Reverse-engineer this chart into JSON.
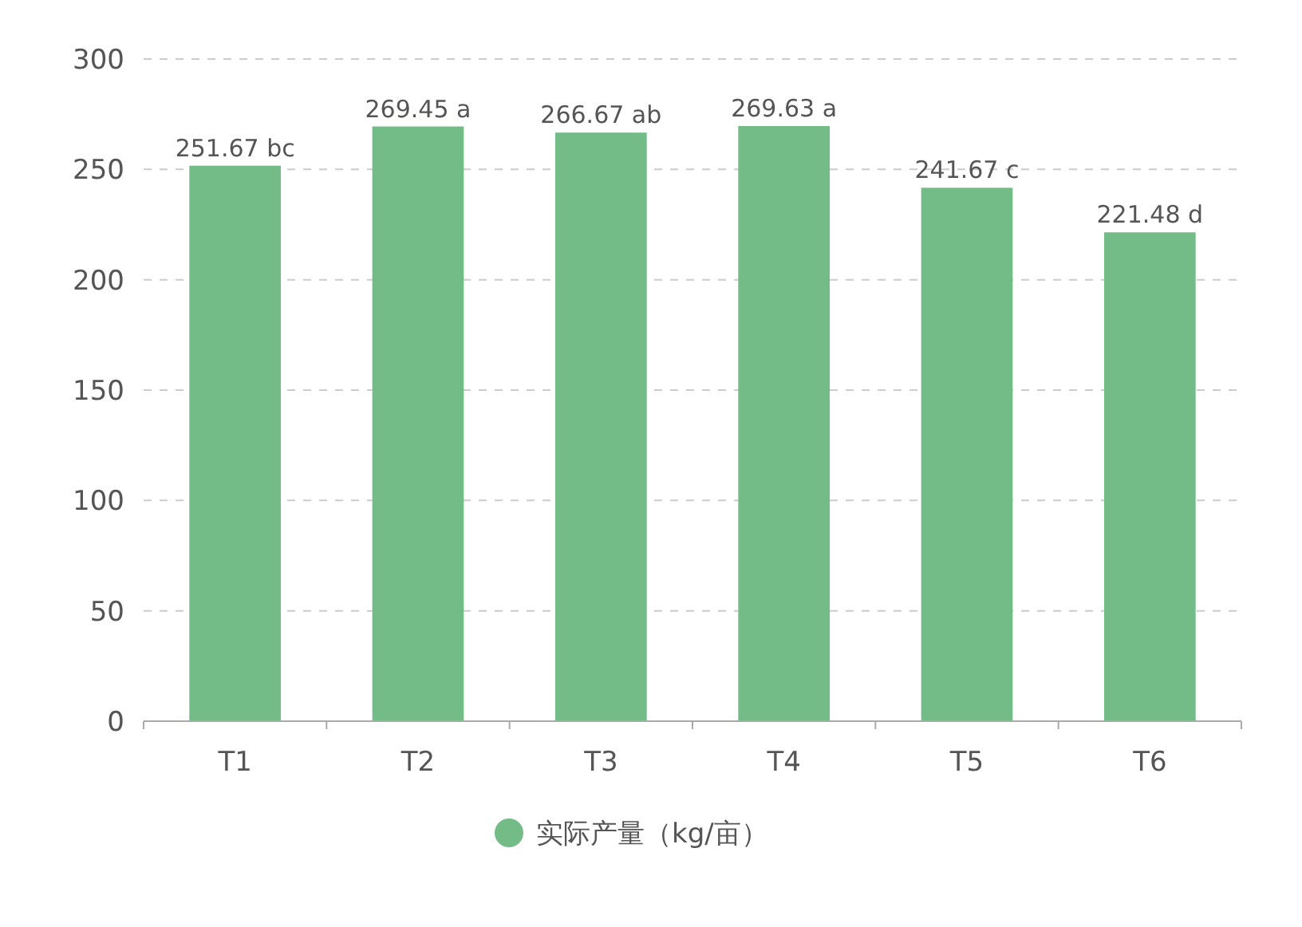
{
  "chart_data": {
    "type": "bar",
    "categories": [
      "T1",
      "T2",
      "T3",
      "T4",
      "T5",
      "T6"
    ],
    "series": [
      {
        "name": "实际产量（kg/亩）",
        "color": "#73bc88",
        "values": [
          251.67,
          269.45,
          266.67,
          269.63,
          241.67,
          221.48
        ],
        "value_labels": [
          "251.67 bc",
          "269.45 a",
          "266.67 ab",
          "269.63 a",
          "241.67 c",
          "221.48 d"
        ]
      }
    ],
    "ylim": [
      0,
      300
    ],
    "yticks": [
      0,
      50,
      100,
      150,
      200,
      250,
      300
    ],
    "grid": "y",
    "legend": "bottom"
  }
}
